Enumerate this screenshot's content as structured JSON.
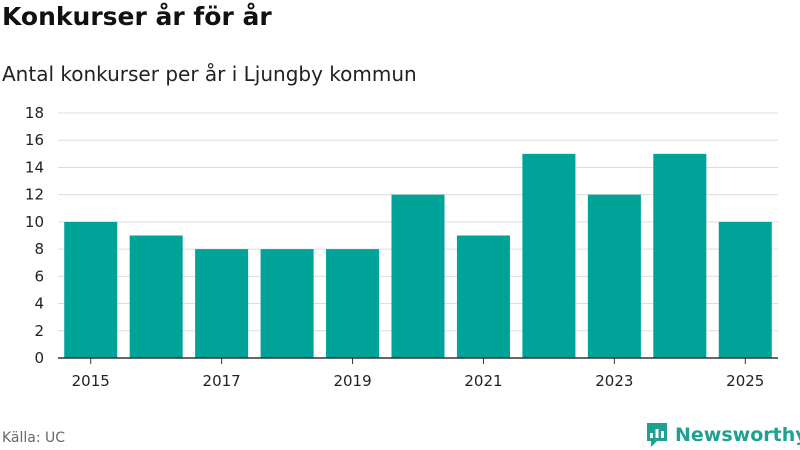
{
  "header": {
    "title": "Konkurser år för år",
    "subtitle": "Antal konkurser per år i Ljungby kommun"
  },
  "footer": {
    "source": "Källa: UC",
    "brand": "Newsworthy"
  },
  "colors": {
    "bar": "#00a398",
    "grid": "#dddddd",
    "axis": "#333333",
    "brand": "#1fa191"
  },
  "chart_data": {
    "type": "bar",
    "title": "Konkurser år för år",
    "subtitle": "Antal konkurser per år i Ljungby kommun",
    "xlabel": "",
    "ylabel": "",
    "categories": [
      "2015",
      "2016",
      "2017",
      "2018",
      "2019",
      "2020",
      "2021",
      "2022",
      "2023",
      "2024",
      "2025"
    ],
    "values": [
      10,
      9,
      8,
      8,
      8,
      12,
      9,
      15,
      12,
      15,
      10
    ],
    "ylim": [
      0,
      18
    ],
    "yticks": [
      0,
      2,
      4,
      6,
      8,
      10,
      12,
      14,
      16,
      18
    ],
    "xtick_labels": [
      "2015",
      "2017",
      "2019",
      "2021",
      "2023",
      "2025"
    ],
    "grid": true,
    "legend": "none"
  }
}
